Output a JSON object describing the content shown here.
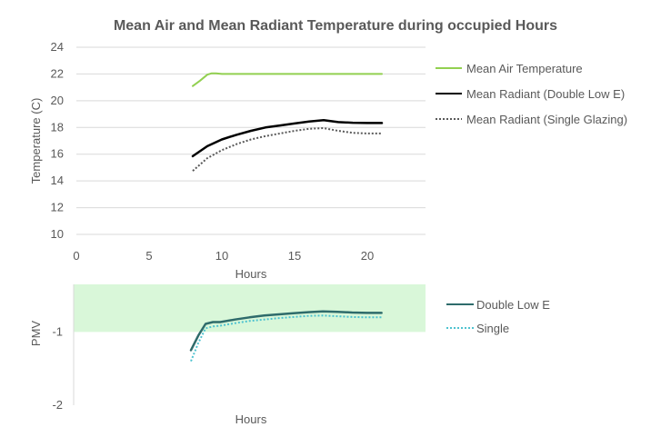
{
  "chart_data": [
    {
      "type": "line",
      "title": "Mean Air and Mean Radiant Temperature during occupied Hours",
      "xlabel": "Hours",
      "ylabel": "Temperature (C)",
      "xlim": [
        0,
        24
      ],
      "ylim": [
        10,
        24
      ],
      "xticks": [
        0,
        5,
        10,
        15,
        20
      ],
      "yticks": [
        10,
        12,
        14,
        16,
        18,
        20,
        22,
        24
      ],
      "grid": "horizontal",
      "legend_position": "right",
      "series": [
        {
          "name": "Mean Air Temperature",
          "color": "#92d050",
          "style": "solid",
          "x": [
            8,
            8.5,
            9,
            9.3,
            9.6,
            10,
            12,
            14,
            16,
            18,
            20,
            21
          ],
          "y": [
            21.1,
            21.5,
            21.95,
            22.05,
            22.05,
            22.0,
            22.0,
            22.0,
            22.0,
            22.0,
            22.0,
            22.0
          ]
        },
        {
          "name": "Mean Radiant (Double Low E)",
          "color": "#000000",
          "style": "solid",
          "x": [
            8,
            9,
            10,
            11,
            12,
            13,
            14,
            15,
            16,
            17,
            18,
            19,
            20,
            21
          ],
          "y": [
            15.85,
            16.6,
            17.1,
            17.45,
            17.75,
            18.0,
            18.15,
            18.3,
            18.45,
            18.55,
            18.4,
            18.35,
            18.33,
            18.33
          ]
        },
        {
          "name": "Mean Radiant (Single Glazing)",
          "color": "#595959",
          "style": "dotted",
          "x": [
            8,
            9,
            10,
            11,
            12,
            13,
            14,
            15,
            16,
            17,
            18,
            19,
            20,
            21
          ],
          "y": [
            14.75,
            15.7,
            16.3,
            16.75,
            17.1,
            17.35,
            17.55,
            17.75,
            17.9,
            17.95,
            17.75,
            17.6,
            17.55,
            17.55
          ]
        }
      ]
    },
    {
      "type": "line",
      "title": "",
      "xlabel": "Hours",
      "ylabel": "PMV",
      "xlim": [
        0,
        24
      ],
      "ylim": [
        -2,
        -0.35
      ],
      "yticks": [
        -1,
        -2
      ],
      "comfort_band": [
        -1,
        -0.35
      ],
      "comfort_band_color": "#d9f7d9",
      "legend_position": "right",
      "series": [
        {
          "name": "Double Low E",
          "color": "#2e6b6b",
          "style": "solid",
          "x": [
            8,
            8.5,
            9,
            9.5,
            10,
            11,
            12,
            13,
            14,
            15,
            16,
            17,
            18,
            19,
            20,
            21
          ],
          "y": [
            -1.25,
            -1.05,
            -0.89,
            -0.865,
            -0.865,
            -0.83,
            -0.8,
            -0.775,
            -0.76,
            -0.745,
            -0.73,
            -0.72,
            -0.725,
            -0.735,
            -0.74,
            -0.74
          ]
        },
        {
          "name": "Single",
          "color": "#4fc3d0",
          "style": "dotted",
          "x": [
            8,
            8.5,
            9,
            9.5,
            10,
            11,
            12,
            13,
            14,
            15,
            16,
            17,
            18,
            19,
            20,
            21
          ],
          "y": [
            -1.4,
            -1.15,
            -0.95,
            -0.925,
            -0.915,
            -0.88,
            -0.85,
            -0.83,
            -0.81,
            -0.795,
            -0.78,
            -0.775,
            -0.785,
            -0.795,
            -0.8,
            -0.8
          ]
        }
      ]
    }
  ]
}
